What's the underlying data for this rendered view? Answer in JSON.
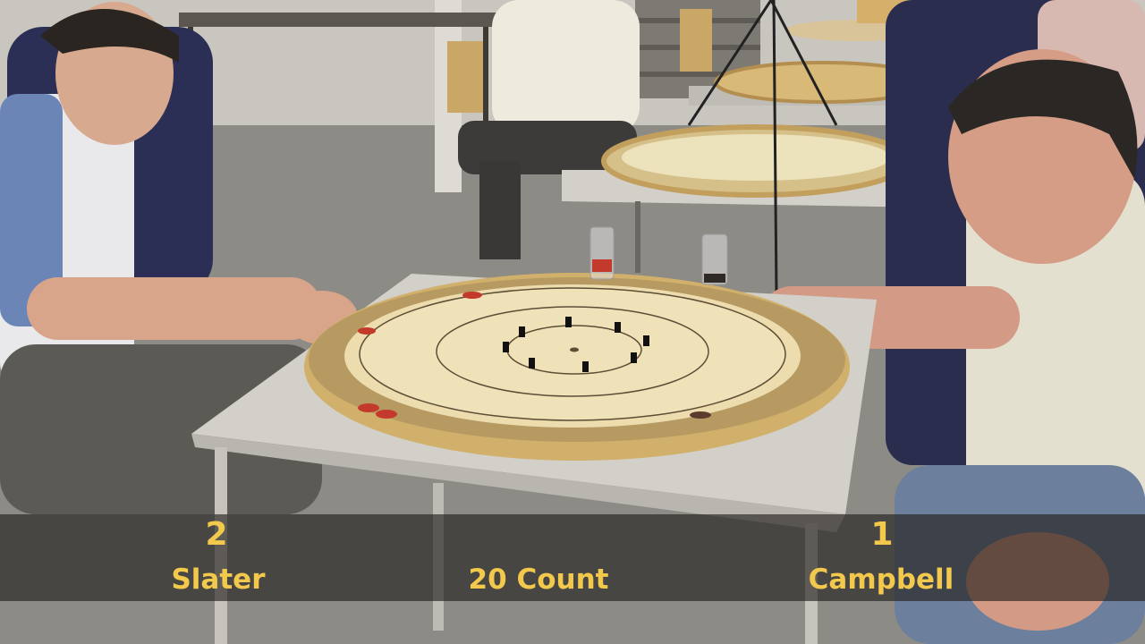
{
  "scoreboard": {
    "player1": {
      "score": "2",
      "name": "Slater"
    },
    "player2": {
      "score": "1",
      "name": "Campbell"
    },
    "center_label": "20 Count"
  },
  "colors": {
    "caption_text": "#f2c94c",
    "caption_bar": "#1e1c18",
    "board_wood": "#e9d9a8",
    "board_rim": "#c9a765"
  }
}
